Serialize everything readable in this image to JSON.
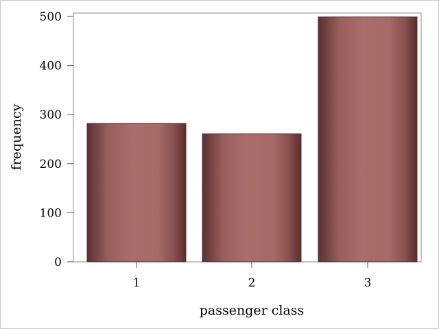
{
  "chart_data": {
    "type": "bar",
    "categories": [
      "1",
      "2",
      "3"
    ],
    "values": [
      282,
      261,
      499
    ],
    "xlabel": "passenger class",
    "ylabel": "frequency",
    "ylim": [
      0,
      500
    ],
    "yticks": [
      0,
      100,
      200,
      300,
      400,
      500
    ],
    "grid": false,
    "bar_color": "#a66a67",
    "bar_edge_color": "#5c2f2f"
  }
}
